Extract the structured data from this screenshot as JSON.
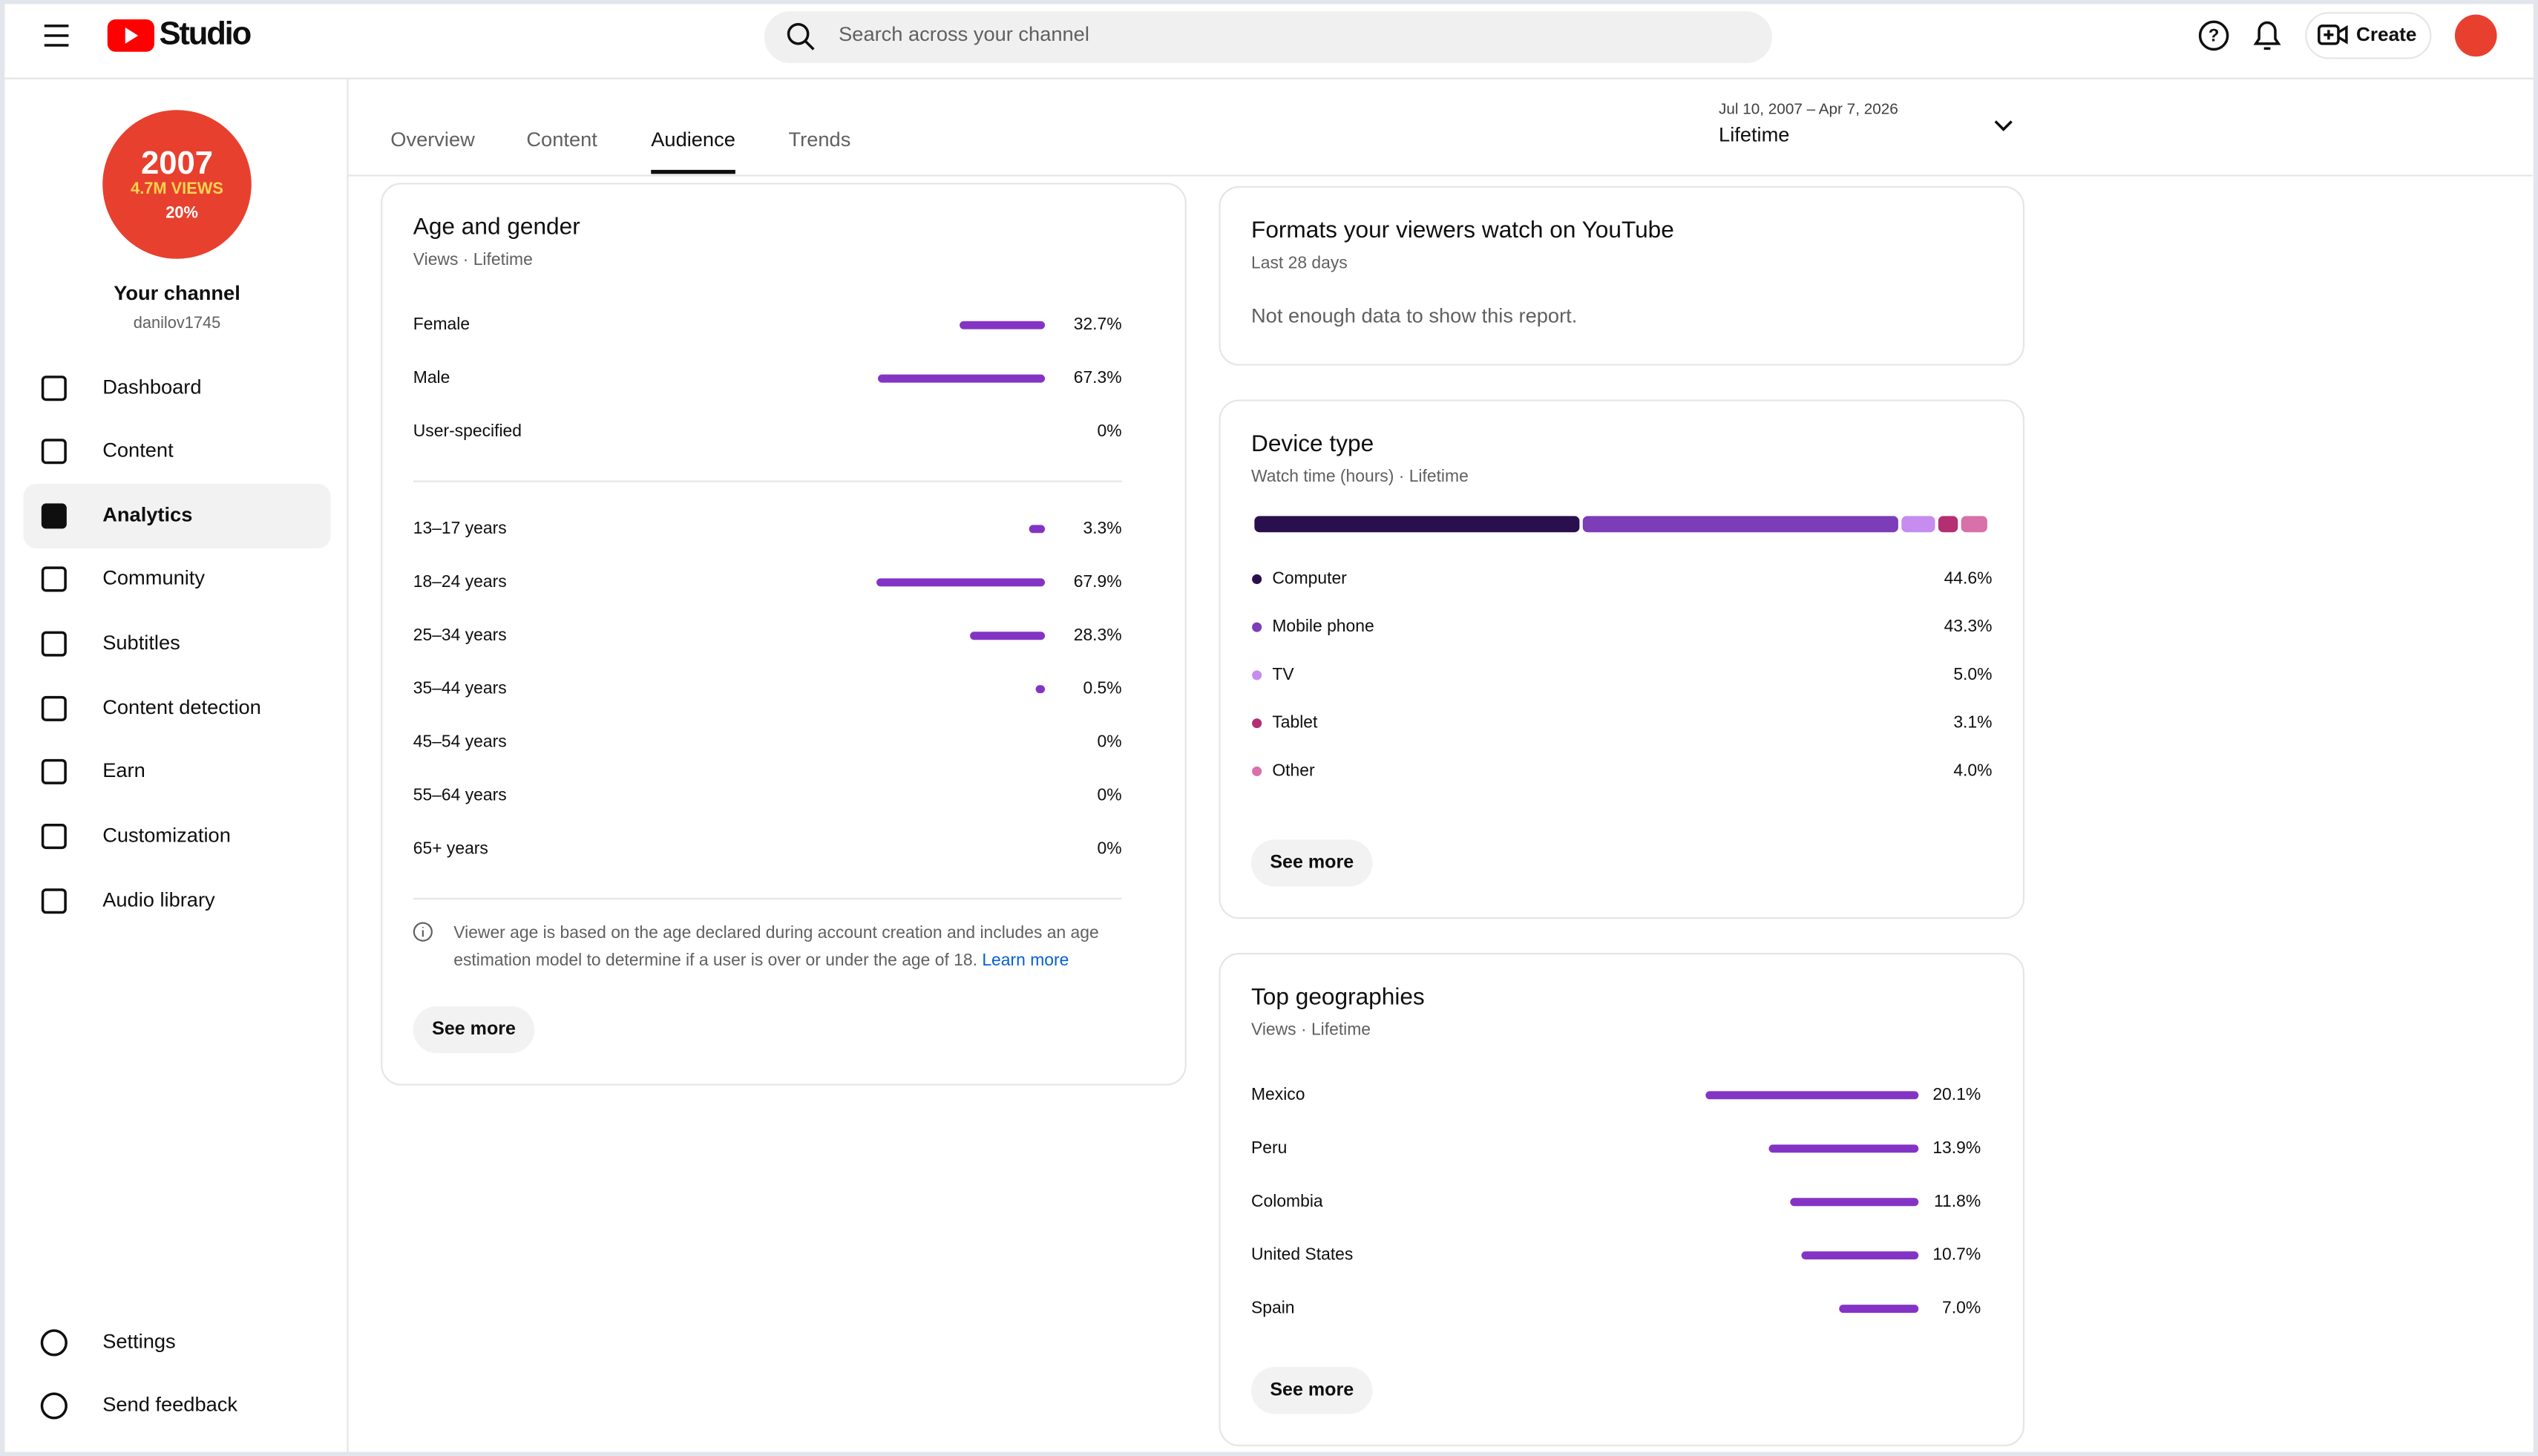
{
  "header": {
    "app": "Studio",
    "search_placeholder": "Search across your channel",
    "create": "Create"
  },
  "channel": {
    "avatar": {
      "line1": "2007",
      "line2": "4.7M VIEWS",
      "line3": "20%"
    },
    "name": "Your channel",
    "handle": "danilov1745"
  },
  "nav": {
    "items": [
      "Dashboard",
      "Content",
      "Analytics",
      "Community",
      "Subtitles",
      "Content detection",
      "Earn",
      "Customization",
      "Audio library"
    ],
    "active": 2,
    "footer": [
      "Settings",
      "Send feedback"
    ]
  },
  "tabs": {
    "items": [
      "Overview",
      "Content",
      "Audience",
      "Trends"
    ],
    "active": 2
  },
  "date_range": {
    "range": "Jul 10, 2007 – Apr 7, 2026",
    "label": "Lifetime"
  },
  "age_gender": {
    "title": "Age and gender",
    "subtitle": "Views · Lifetime",
    "bar_color": "#8434c4",
    "gender": [
      {
        "label": "Female",
        "value": 32.7,
        "value_label": "32.7%"
      },
      {
        "label": "Male",
        "value": 67.3,
        "value_label": "67.3%"
      },
      {
        "label": "User-specified",
        "value": 0,
        "value_label": "0%"
      }
    ],
    "age": [
      {
        "label": "13–17 years",
        "value": 3.3,
        "value_label": "3.3%"
      },
      {
        "label": "18–24 years",
        "value": 67.9,
        "value_label": "67.9%"
      },
      {
        "label": "25–34 years",
        "value": 28.3,
        "value_label": "28.3%"
      },
      {
        "label": "35–44 years",
        "value": 0.5,
        "value_label": "0.5%"
      },
      {
        "label": "45–54 years",
        "value": 0,
        "value_label": "0%"
      },
      {
        "label": "55–64 years",
        "value": 0,
        "value_label": "0%"
      },
      {
        "label": "65+ years",
        "value": 0,
        "value_label": "0%"
      }
    ],
    "note": [
      "Viewer age is based on the age declared during account creation and includes an age",
      "estimation model to determine if a user is over or under the age of 18."
    ],
    "link": "Learn more",
    "button": "See more"
  },
  "formats": {
    "title": "Formats your viewers watch on YouTube",
    "subtitle": "Last 28 days",
    "message": "Not enough data to show this report."
  },
  "device": {
    "title": "Device type",
    "subtitle": "Watch time (hours) · Lifetime",
    "rows": [
      {
        "label": "Computer",
        "value": 44.6,
        "value_label": "44.6%",
        "color": "#2a0f4e"
      },
      {
        "label": "Mobile phone",
        "value": 43.3,
        "value_label": "43.3%",
        "color": "#7d3cb8"
      },
      {
        "label": "TV",
        "value": 5.0,
        "value_label": "5.0%",
        "color": "#c68cf0"
      },
      {
        "label": "Tablet",
        "value": 3.1,
        "value_label": "3.1%",
        "color": "#b32f72"
      },
      {
        "label": "Other",
        "value": 4.0,
        "value_label": "4.0%",
        "color": "#d870a9"
      }
    ],
    "button": "See more"
  },
  "geo": {
    "title": "Top geographies",
    "subtitle": "Views · Lifetime",
    "bar_color": "#8434c4",
    "rows": [
      {
        "label": "Mexico",
        "value": 20.1,
        "value_label": "20.1%"
      },
      {
        "label": "Peru",
        "value": 13.9,
        "value_label": "13.9%"
      },
      {
        "label": "Colombia",
        "value": 11.8,
        "value_label": "11.8%"
      },
      {
        "label": "United States",
        "value": 10.7,
        "value_label": "10.7%"
      },
      {
        "label": "Spain",
        "value": 7.0,
        "value_label": "7.0%"
      }
    ],
    "button": "See more"
  }
}
